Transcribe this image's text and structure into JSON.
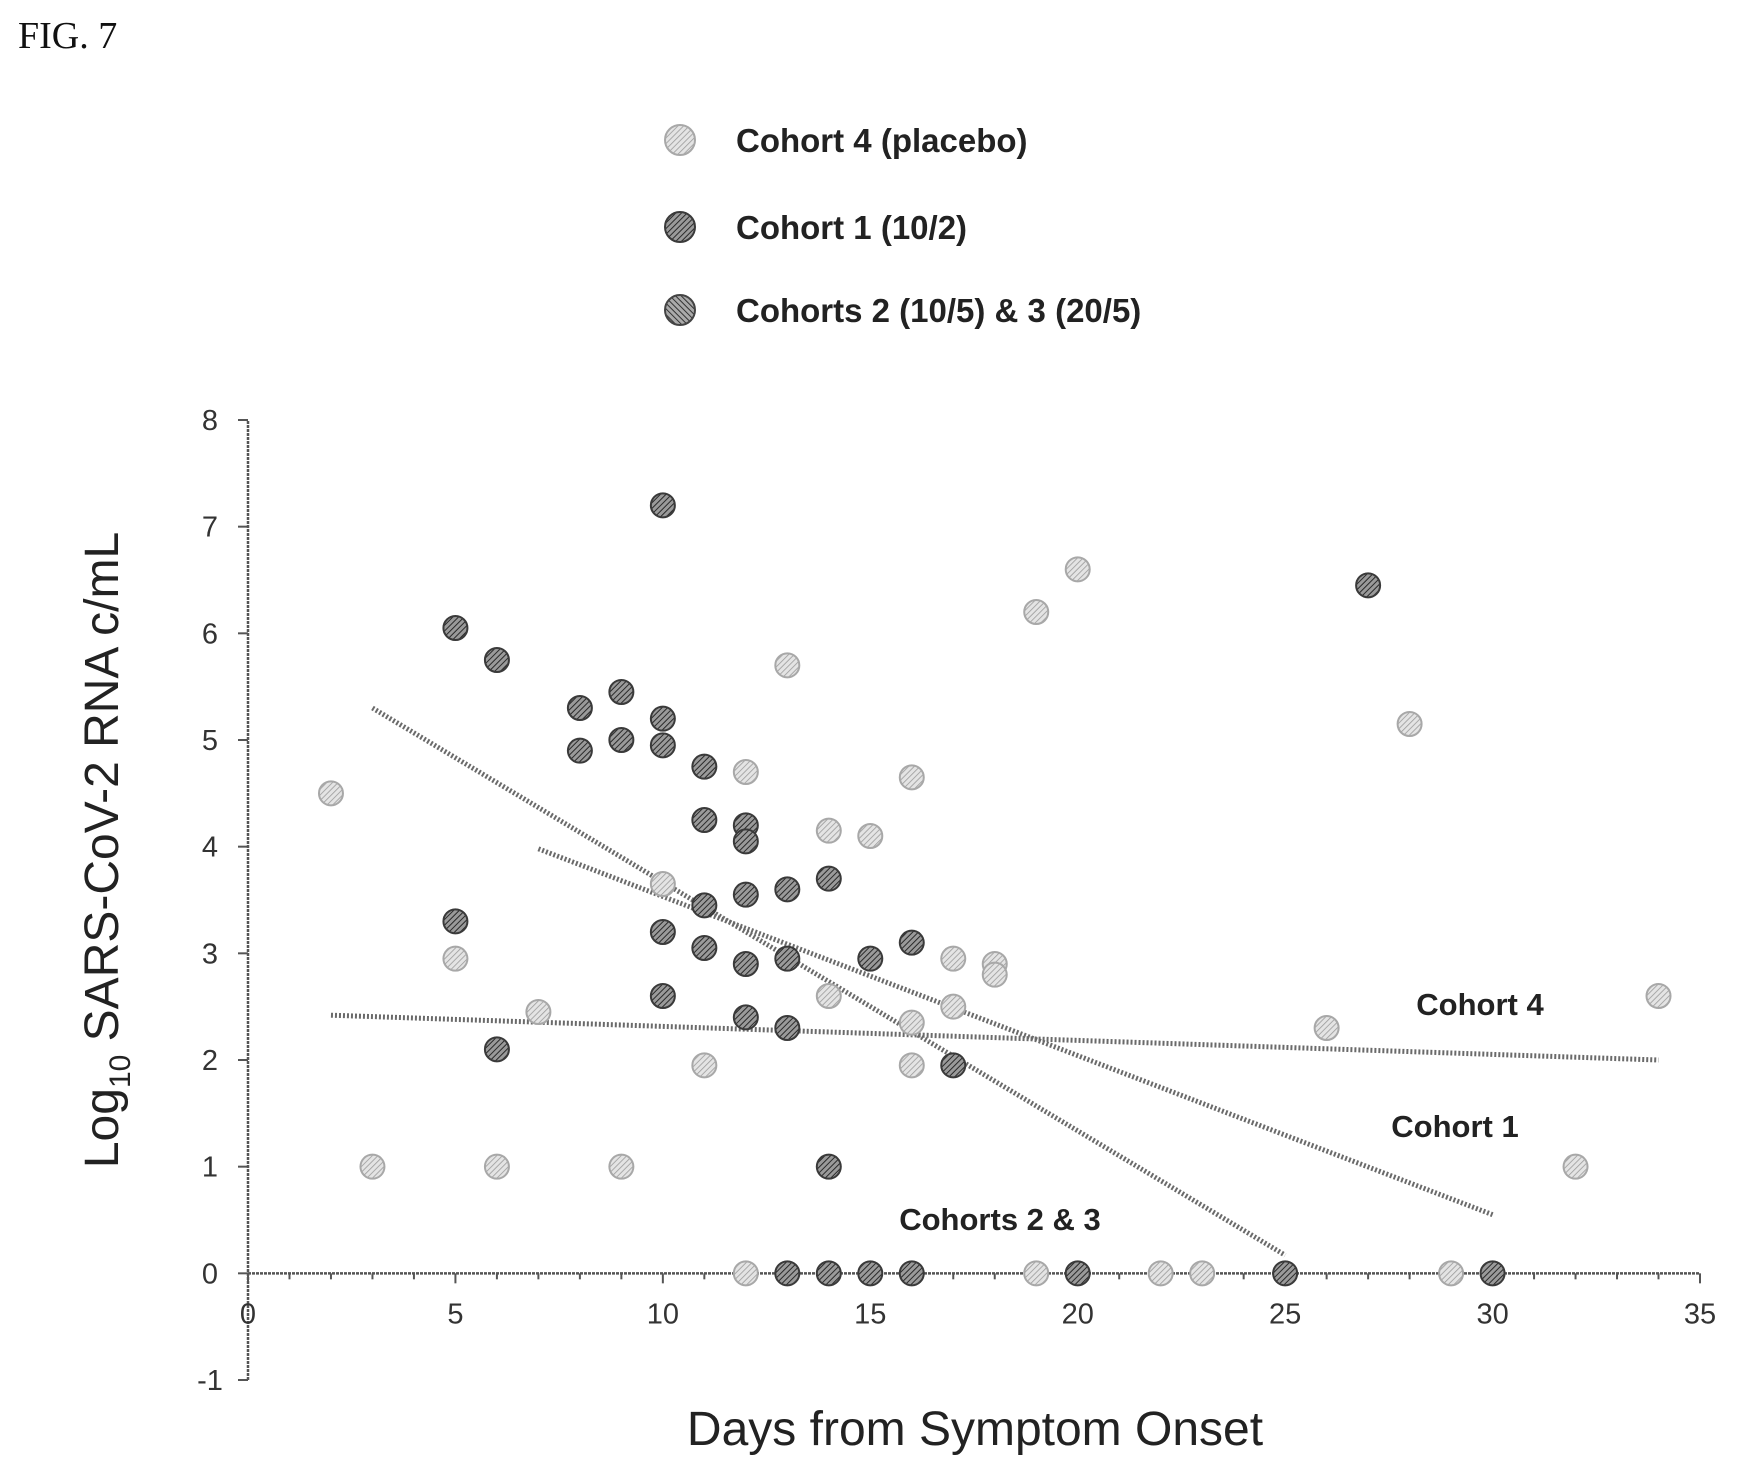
{
  "figure_label": "FIG. 7",
  "chart_data": {
    "type": "scatter",
    "title": "",
    "xlabel": "Days from Symptom Onset",
    "ylabel_main": "Log",
    "ylabel_sub": "10",
    "ylabel_rest": " SARS-CoV-2 RNA c/mL",
    "xlim": [
      0,
      35
    ],
    "ylim": [
      -1,
      8
    ],
    "xticks": [
      0,
      5,
      10,
      15,
      20,
      25,
      30,
      35
    ],
    "yticks": [
      -1,
      0,
      1,
      2,
      3,
      4,
      5,
      6,
      7,
      8
    ],
    "grid": false,
    "legend_position": "top-center",
    "series": [
      {
        "name": "Cohort 4 (placebo)",
        "color": "#bdbdbd",
        "points": [
          [
            2,
            4.5
          ],
          [
            3,
            1
          ],
          [
            5,
            2.95
          ],
          [
            6,
            1
          ],
          [
            7,
            2.45
          ],
          [
            9,
            1
          ],
          [
            10,
            3.65
          ],
          [
            11,
            1.95
          ],
          [
            12,
            4.7
          ],
          [
            12,
            0
          ],
          [
            13,
            5.7
          ],
          [
            14,
            4.15
          ],
          [
            14,
            2.6
          ],
          [
            15,
            4.1
          ],
          [
            16,
            4.65
          ],
          [
            16,
            2.35
          ],
          [
            16,
            1.95
          ],
          [
            17,
            2.95
          ],
          [
            17,
            2.5
          ],
          [
            18,
            2.9
          ],
          [
            18,
            2.8
          ],
          [
            19,
            6.2
          ],
          [
            19,
            0
          ],
          [
            20,
            6.6
          ],
          [
            22,
            0
          ],
          [
            23,
            0
          ],
          [
            26,
            2.3
          ],
          [
            28,
            5.15
          ],
          [
            29,
            0
          ],
          [
            32,
            1
          ],
          [
            34,
            2.6
          ]
        ]
      },
      {
        "name": "Cohort 1 (10/2)",
        "color": "#5a5a5a",
        "points": [
          [
            5,
            6.05
          ],
          [
            5,
            3.3
          ],
          [
            6,
            5.75
          ],
          [
            6,
            2.1
          ],
          [
            8,
            5.3
          ],
          [
            8,
            4.9
          ],
          [
            9,
            5.45
          ],
          [
            9,
            5.0
          ],
          [
            10,
            7.2
          ],
          [
            10,
            5.2
          ],
          [
            10,
            4.95
          ],
          [
            10,
            3.2
          ],
          [
            10,
            2.6
          ],
          [
            11,
            4.75
          ],
          [
            11,
            4.25
          ],
          [
            11,
            3.45
          ],
          [
            11,
            3.05
          ],
          [
            12,
            4.2
          ],
          [
            12,
            4.05
          ],
          [
            12,
            3.55
          ],
          [
            12,
            2.9
          ],
          [
            12,
            2.4
          ],
          [
            13,
            3.6
          ],
          [
            13,
            2.95
          ],
          [
            13,
            2.3
          ],
          [
            13,
            0
          ],
          [
            14,
            3.7
          ],
          [
            14,
            1
          ],
          [
            14,
            0
          ],
          [
            15,
            2.95
          ],
          [
            15,
            0
          ],
          [
            16,
            3.1
          ],
          [
            16,
            0
          ],
          [
            17,
            1.95
          ],
          [
            20,
            0
          ],
          [
            25,
            0
          ],
          [
            27,
            6.45
          ],
          [
            30,
            0
          ]
        ]
      },
      {
        "name": "Cohorts 2 (10/5) & 3 (20/5)",
        "color": "#6e6e6e",
        "points": []
      }
    ],
    "trend_lines": [
      {
        "name": "Cohort 4",
        "x": [
          2,
          34
        ],
        "y": [
          2.42,
          2.0
        ]
      },
      {
        "name": "Cohort 1",
        "x": [
          7,
          30
        ],
        "y": [
          3.98,
          0.55
        ]
      },
      {
        "name": "Cohorts 2 & 3",
        "x": [
          3,
          25
        ],
        "y": [
          5.3,
          0.17
        ]
      }
    ]
  }
}
